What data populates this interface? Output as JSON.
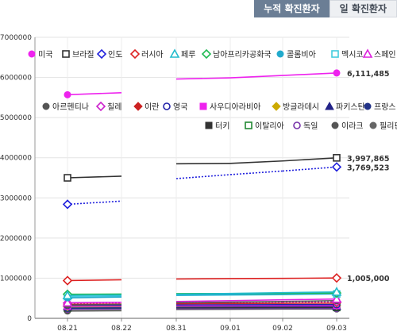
{
  "tabs": [
    {
      "label": "누적 확진환자",
      "active": true
    },
    {
      "label": "일 확진환자",
      "active": false
    }
  ],
  "chart_data": {
    "type": "line",
    "x": [
      "08.21",
      "08.22",
      "08.31",
      "09.01",
      "09.02",
      "09.03"
    ],
    "ylim": [
      0,
      7000000
    ],
    "yticks": [
      0,
      1000000,
      2000000,
      3000000,
      4000000,
      5000000,
      6000000,
      7000000
    ],
    "ytick_labels": [
      "0",
      "1000000",
      "2000000",
      "3000000",
      "4000000",
      "5000000",
      "6000000",
      "7000000"
    ],
    "legend_position": "top",
    "grid": true,
    "series": [
      {
        "name": "미국",
        "color": "#ee22ee",
        "marker": "circle",
        "dash": "solid",
        "values": [
          5570000,
          5620000,
          5960000,
          5990000,
          6050000,
          6111485
        ]
      },
      {
        "name": "브라질",
        "color": "#333333",
        "marker": "square-open",
        "dash": "solid",
        "values": [
          3500000,
          3540000,
          3850000,
          3860000,
          3920000,
          3997865
        ]
      },
      {
        "name": "인도",
        "color": "#2222dd",
        "marker": "diamond-open",
        "dash": "dotted",
        "values": [
          2840000,
          2920000,
          3480000,
          3580000,
          3670000,
          3769523
        ]
      },
      {
        "name": "러시아",
        "color": "#dd2222",
        "marker": "diamond-open",
        "dash": "solid",
        "values": [
          940000,
          960000,
          980000,
          990000,
          995000,
          1005000
        ]
      },
      {
        "name": "페루",
        "color": "#22bbcc",
        "marker": "triangle-open",
        "dash": "solid",
        "values": [
          570000,
          580000,
          600000,
          620000,
          640000,
          657000
        ]
      },
      {
        "name": "남아프리카공화국",
        "color": "#22bb55",
        "marker": "diamond-open",
        "dash": "solid",
        "values": [
          600000,
          605000,
          615000,
          618000,
          622000,
          630000
        ]
      },
      {
        "name": "콜롬비아",
        "color": "#22aacc",
        "marker": "circle",
        "dash": "solid",
        "values": [
          510000,
          530000,
          580000,
          590000,
          600000,
          615000
        ]
      },
      {
        "name": "멕시코",
        "color": "#44ccdd",
        "marker": "square-open",
        "dash": "solid",
        "values": [
          540000,
          550000,
          570000,
          580000,
          590000,
          606000
        ]
      },
      {
        "name": "스페인",
        "color": "#dd22dd",
        "marker": "triangle-open",
        "dash": "solid",
        "values": [
          390000,
          400000,
          420000,
          440000,
          460000,
          480000
        ]
      },
      {
        "name": "아르헨티나",
        "color": "#555555",
        "marker": "circle",
        "dash": "solid",
        "values": [
          330000,
          345000,
          390000,
          405000,
          420000,
          440000
        ]
      },
      {
        "name": "칠레",
        "color": "#cc22cc",
        "marker": "diamond-open",
        "dash": "dotted",
        "values": [
          380000,
          385000,
          395000,
          400000,
          405000,
          415000
        ]
      },
      {
        "name": "이란",
        "color": "#cc2222",
        "marker": "diamond",
        "dash": "solid",
        "values": [
          350000,
          355000,
          365000,
          370000,
          375000,
          380000
        ]
      },
      {
        "name": "영국",
        "color": "#2222aa",
        "marker": "circle-open",
        "dash": "solid",
        "values": [
          325000,
          328000,
          335000,
          337000,
          339000,
          342000
        ]
      },
      {
        "name": "사우디아라비아",
        "color": "#ee22ee",
        "marker": "square",
        "dash": "solid",
        "values": [
          300000,
          305000,
          312000,
          314000,
          315000,
          318000
        ]
      },
      {
        "name": "방글라데시",
        "color": "#ccaa00",
        "marker": "diamond",
        "dash": "solid",
        "values": [
          290000,
          295000,
          305000,
          310000,
          315000,
          320000
        ]
      },
      {
        "name": "파키스탄",
        "color": "#222288",
        "marker": "triangle",
        "dash": "solid",
        "values": [
          292000,
          293000,
          295000,
          296000,
          297000,
          298000
        ]
      },
      {
        "name": "프랑스",
        "color": "#223388",
        "marker": "circle",
        "dash": "solid",
        "values": [
          250000,
          260000,
          280000,
          290000,
          300000,
          310000
        ]
      },
      {
        "name": "터키",
        "color": "#333333",
        "marker": "square",
        "dash": "solid",
        "values": [
          256000,
          258000,
          265000,
          268000,
          270000,
          273000
        ]
      },
      {
        "name": "이탈리아",
        "color": "#228833",
        "marker": "square-open",
        "dash": "solid",
        "values": [
          257000,
          258000,
          266000,
          267000,
          269000,
          271000
        ]
      },
      {
        "name": "독일",
        "color": "#7733aa",
        "marker": "circle-open",
        "dash": "solid",
        "values": [
          232000,
          234000,
          243000,
          245000,
          247000,
          249000
        ]
      },
      {
        "name": "이라크",
        "color": "#555555",
        "marker": "circle",
        "dash": "solid",
        "values": [
          190000,
          195000,
          225000,
          230000,
          240000,
          250000
        ]
      },
      {
        "name": "필리핀",
        "color": "#666666",
        "marker": "circle",
        "dash": "solid",
        "values": [
          182000,
          190000,
          220000,
          225000,
          230000,
          232000
        ]
      }
    ],
    "annotations": [
      {
        "series": "미국",
        "label": "6,111,485"
      },
      {
        "series": "브라질",
        "label": "3,997,865"
      },
      {
        "series": "인도",
        "label": "3,769,523"
      },
      {
        "series": "러시아",
        "label": "1,005,000"
      }
    ]
  }
}
